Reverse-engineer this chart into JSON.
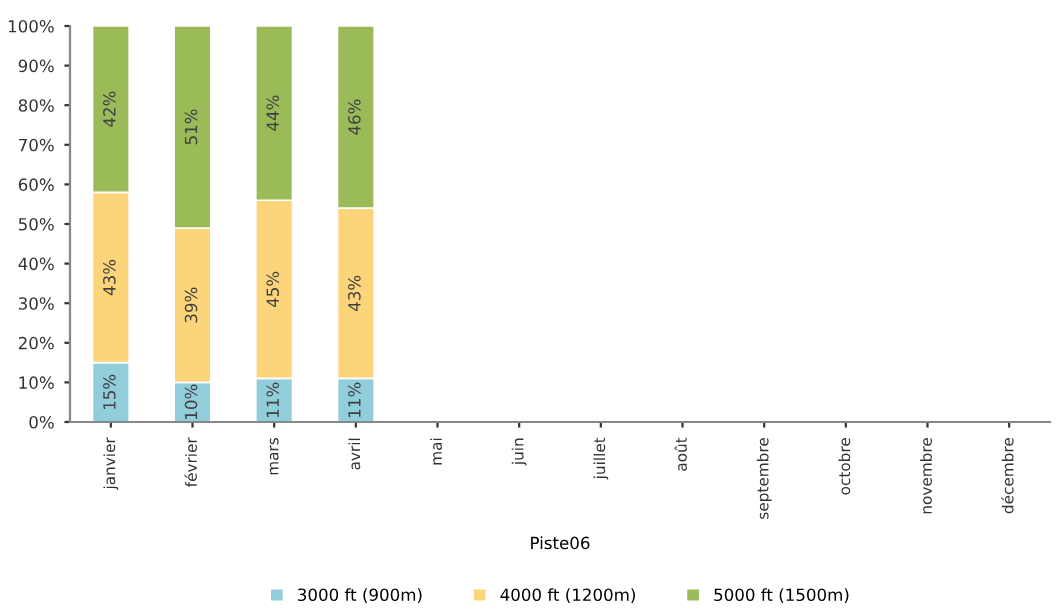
{
  "chart_data": {
    "type": "bar",
    "stacked": true,
    "xlabel": "Piste06",
    "categories": [
      "janvier",
      "février",
      "mars",
      "avril",
      "mai",
      "juin",
      "juillet",
      "août",
      "septembre",
      "octobre",
      "novembre",
      "décembre"
    ],
    "series": [
      {
        "name": "3000 ft (900m)",
        "color": "#92cddc",
        "values": [
          15,
          10,
          11,
          11,
          null,
          null,
          null,
          null,
          null,
          null,
          null,
          null
        ],
        "value_labels": [
          "15%",
          "10%",
          "11%",
          "11%",
          null,
          null,
          null,
          null,
          null,
          null,
          null,
          null
        ]
      },
      {
        "name": "4000 ft (1200m)",
        "color": "#fcd57a",
        "values": [
          43,
          39,
          45,
          43,
          null,
          null,
          null,
          null,
          null,
          null,
          null,
          null
        ],
        "value_labels": [
          "43%",
          "39%",
          "45%",
          "43%",
          null,
          null,
          null,
          null,
          null,
          null,
          null,
          null
        ]
      },
      {
        "name": "5000 ft (1500m)",
        "color": "#9bbb59",
        "values": [
          42,
          51,
          44,
          46,
          null,
          null,
          null,
          null,
          null,
          null,
          null,
          null
        ],
        "value_labels": [
          "42%",
          "51%",
          "44%",
          "46%",
          null,
          null,
          null,
          null,
          null,
          null,
          null,
          null
        ]
      }
    ],
    "ylim": [
      0,
      100
    ],
    "yticks": [
      {
        "value": 0,
        "label": "0%"
      },
      {
        "value": 10,
        "label": "10%"
      },
      {
        "value": 20,
        "label": "20%"
      },
      {
        "value": 30,
        "label": "30%"
      },
      {
        "value": 40,
        "label": "40%"
      },
      {
        "value": 50,
        "label": "50%"
      },
      {
        "value": 60,
        "label": "60%"
      },
      {
        "value": 70,
        "label": "70%"
      },
      {
        "value": 80,
        "label": "80%"
      },
      {
        "value": 90,
        "label": "90%"
      },
      {
        "value": 100,
        "label": "100%"
      }
    ],
    "grid": false,
    "legend": "bottom"
  }
}
